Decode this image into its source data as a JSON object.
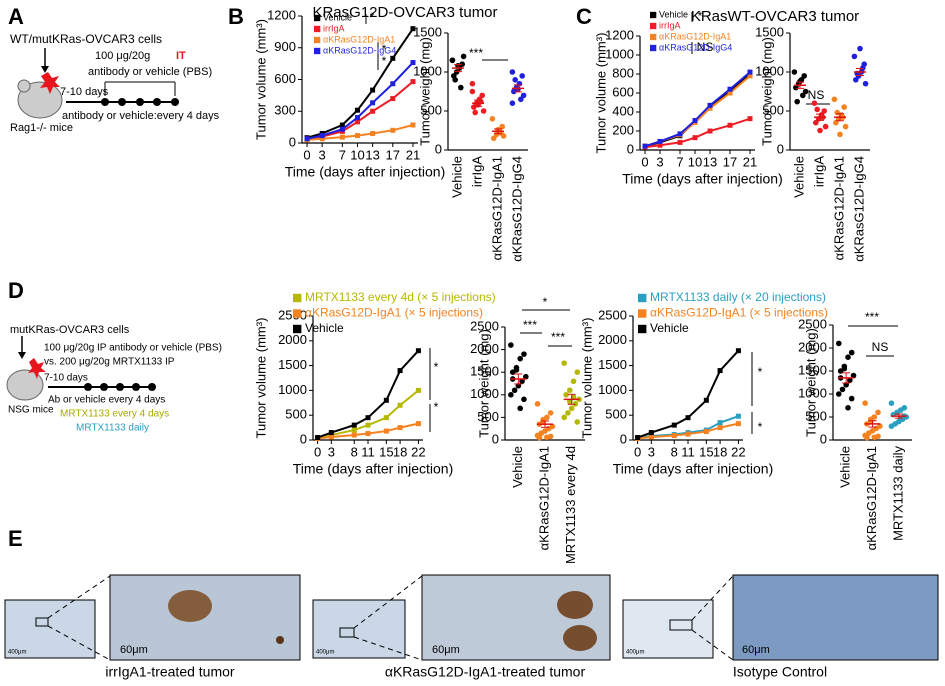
{
  "panel_labels": [
    "A",
    "B",
    "C",
    "D",
    "E"
  ],
  "schematic_A": {
    "cells": "WT/mutKRas-OVCAR3 cells",
    "dose": "100 μg/20g",
    "route": "IT",
    "treatment": "antibody or vehicle (PBS)",
    "delay": "7-10 days",
    "mice": "Rag1-/- mice",
    "schedule": "antibody or vehicle:every 4 days"
  },
  "schematic_D": {
    "cells": "mutKRas-OVCAR3 cells",
    "dose": "100 μg/20g IP antibody or vehicle (PBS)",
    "dose2": "vs. 200 μg/20g MRTX1133 IP",
    "delay": "7-10 days",
    "mice": "NSG mice",
    "schedule": "Ab or vehicle every 4 days",
    "schedule2": "MRTX1133 every 4 days",
    "schedule3": "MRTX1133 daily"
  },
  "images": [
    {
      "caption": "irrIgA1-treated tumor",
      "scale_small": "400μm",
      "scale_large": "60μm"
    },
    {
      "caption": "αKRasG12D-IgA1-treated tumor",
      "scale_small": "400μm",
      "scale_large": "60μm"
    },
    {
      "caption": "Isotype Control",
      "scale_small": "400μm",
      "scale_large": "60μm"
    }
  ],
  "chart_data": [
    {
      "type": "line",
      "title": "KRasG12D-OVCAR3 tumor",
      "y_label": "Tumor volume (mm³)",
      "x_label": "Time (days after injection)",
      "x": [
        0,
        3,
        7,
        10,
        13,
        17,
        21
      ],
      "xlim": [
        -1,
        22
      ],
      "xticks": [
        0,
        3,
        7,
        10,
        13,
        17,
        21
      ],
      "ylim": [
        0,
        1200
      ],
      "yticks": [
        0,
        300,
        600,
        900,
        1200
      ],
      "series": [
        {
          "name": "Vehicle",
          "color": "#000000",
          "values": [
            50,
            90,
            170,
            310,
            500,
            800,
            1080
          ]
        },
        {
          "name": "irrIgA",
          "color": "#ee1c25",
          "values": [
            40,
            60,
            110,
            200,
            300,
            420,
            580
          ]
        },
        {
          "name": "αKRasG12D-IgA1",
          "color": "#f58220",
          "values": [
            30,
            40,
            55,
            70,
            90,
            120,
            170
          ]
        },
        {
          "name": "αKRasG12D-IgG4",
          "color": "#1f1fe0",
          "values": [
            40,
            70,
            130,
            240,
            380,
            560,
            760
          ]
        }
      ],
      "annotations": [
        "*",
        "*",
        "*"
      ]
    },
    {
      "type": "dot",
      "y_label": "Tumor weight (mg)",
      "categories": [
        "Vehicle",
        "irrIgA",
        "αKRasG12D-IgA1",
        "αKRasG12D-IgG4"
      ],
      "colors": [
        "#000000",
        "#ee1c25",
        "#f58220",
        "#1f1fe0"
      ],
      "ylim": [
        0,
        1500
      ],
      "yticks": [
        0,
        500,
        1000,
        1500
      ],
      "points": [
        [
          1150,
          1100,
          1050,
          1000,
          950,
          1200,
          800,
          1080,
          900,
          1150
        ],
        [
          850,
          700,
          650,
          600,
          550,
          500,
          620,
          580,
          480,
          750
        ],
        [
          400,
          300,
          250,
          200,
          150,
          180,
          220,
          260
        ],
        [
          1000,
          950,
          850,
          800,
          750,
          700,
          650,
          780,
          900,
          600
        ]
      ],
      "values": [
        1050,
        600,
        240,
        790
      ],
      "errors": [
        45,
        40,
        30,
        45
      ],
      "annotations": [
        "***"
      ]
    },
    {
      "type": "line",
      "title": "KRasWT-OVCAR3 tumor",
      "y_label": "Tumor volume (mm³)",
      "x_label": "Time (days after injection)",
      "x": [
        0,
        3,
        7,
        10,
        13,
        17,
        21
      ],
      "xlim": [
        -1,
        22
      ],
      "xticks": [
        0,
        3,
        7,
        10,
        13,
        17,
        21
      ],
      "ylim": [
        0,
        1200
      ],
      "yticks": [
        0,
        200,
        400,
        600,
        800,
        1000,
        1200
      ],
      "series": [
        {
          "name": "Vehicle",
          "color": "#000000",
          "values": [
            40,
            80,
            150,
            300,
            450,
            620,
            800
          ]
        },
        {
          "name": "irrIgA",
          "color": "#ee1c25",
          "values": [
            30,
            50,
            80,
            130,
            200,
            260,
            330
          ]
        },
        {
          "name": "αKRasG12D-IgA1",
          "color": "#f58220",
          "values": [
            40,
            90,
            160,
            290,
            440,
            600,
            780
          ]
        },
        {
          "name": "αKRasG12D-IgG4",
          "color": "#1f1fe0",
          "values": [
            40,
            90,
            170,
            310,
            470,
            640,
            820
          ]
        }
      ],
      "annotations": [
        "*",
        "NS"
      ]
    },
    {
      "type": "dot",
      "y_label": "Tumor weight (mg)",
      "categories": [
        "Vehicle",
        "irrIgA",
        "αKRasG12D-IgA1",
        "αKRasG12D-IgG4"
      ],
      "colors": [
        "#000000",
        "#ee1c25",
        "#f58220",
        "#1f1fe0"
      ],
      "ylim": [
        0,
        1500
      ],
      "yticks": [
        0,
        500,
        1000,
        1500
      ],
      "points": [
        [
          1000,
          950,
          900,
          850,
          800,
          750,
          700,
          880,
          620
        ],
        [
          600,
          500,
          450,
          400,
          350,
          300,
          420,
          250,
          520
        ],
        [
          650,
          550,
          450,
          400,
          350,
          300,
          420,
          200,
          480
        ],
        [
          1200,
          1100,
          1000,
          950,
          900,
          850,
          1050,
          1300,
          980
        ]
      ],
      "values": [
        830,
        420,
        420,
        1000
      ],
      "errors": [
        40,
        40,
        45,
        45
      ],
      "annotations": [
        "NS"
      ]
    },
    {
      "type": "line",
      "y_label": "Tumor volume (mm³)",
      "x_label": "Time (days after injection)",
      "x": [
        0,
        3,
        8,
        11,
        15,
        18,
        22
      ],
      "xlim": [
        -1,
        23
      ],
      "xticks": [
        0,
        3,
        8,
        11,
        15,
        18,
        22
      ],
      "ylim": [
        0,
        2500
      ],
      "yticks": [
        0,
        500,
        1000,
        1500,
        2000,
        2500
      ],
      "series": [
        {
          "name": "MRTX1133 every 4d (× 5 injections)",
          "color": "#b5b800",
          "values": [
            50,
            100,
            200,
            300,
            450,
            700,
            1000
          ]
        },
        {
          "name": "αKRasG12D-IgA1 (× 5 injections)",
          "color": "#f58220",
          "values": [
            30,
            60,
            100,
            130,
            180,
            250,
            330
          ]
        },
        {
          "name": "Vehicle",
          "color": "#000000",
          "values": [
            50,
            150,
            300,
            450,
            800,
            1400,
            1800
          ]
        }
      ],
      "annotations": [
        "*",
        "*"
      ]
    },
    {
      "type": "dot",
      "y_label": "Tumor weight (mg)",
      "categories": [
        "Vehicle",
        "αKRasG12D-IgA1",
        "MRTX1133 every 4d"
      ],
      "colors": [
        "#000000",
        "#f58220",
        "#b5b800"
      ],
      "ylim": [
        0,
        2500
      ],
      "yticks": [
        0,
        500,
        1000,
        1500,
        2000,
        2500
      ],
      "points": [
        [
          2100,
          1900,
          1800,
          1600,
          1500,
          1400,
          1300,
          1200,
          1100,
          1000,
          900,
          700,
          1550,
          1350
        ],
        [
          800,
          600,
          500,
          400,
          350,
          300,
          250,
          200,
          150,
          100,
          80,
          60,
          450,
          50
        ],
        [
          1700,
          1500,
          1300,
          1100,
          1000,
          900,
          800,
          700,
          600,
          500,
          400,
          950,
          850
        ]
      ],
      "values": [
        1350,
        350,
        900
      ],
      "errors": [
        110,
        70,
        110
      ],
      "annotations": [
        "*",
        "***",
        "***"
      ]
    },
    {
      "type": "line",
      "y_label": "Tumor volume (mm³)",
      "x_label": "Time (days after injection)",
      "x": [
        0,
        3,
        8,
        11,
        15,
        18,
        22
      ],
      "xlim": [
        -1,
        23
      ],
      "xticks": [
        0,
        3,
        8,
        11,
        15,
        18,
        22
      ],
      "ylim": [
        0,
        2500
      ],
      "yticks": [
        0,
        500,
        1000,
        1500,
        2000,
        2500
      ],
      "series": [
        {
          "name": "MRTX1133 daily (× 20 injections)",
          "color": "#2a9fbf",
          "values": [
            50,
            80,
            110,
            150,
            200,
            350,
            480
          ]
        },
        {
          "name": "αKRasG12D-IgA1 (× 5 injections)",
          "color": "#f58220",
          "values": [
            30,
            60,
            90,
            120,
            170,
            250,
            330
          ]
        },
        {
          "name": "Vehicle",
          "color": "#000000",
          "values": [
            50,
            150,
            300,
            450,
            800,
            1400,
            1800
          ]
        }
      ],
      "annotations": [
        "*",
        "*"
      ]
    },
    {
      "type": "dot",
      "y_label": "Tumor weight (mg)",
      "categories": [
        "Vehicle",
        "αKRasG12D-IgA1",
        "MRTX1133 daily"
      ],
      "colors": [
        "#000000",
        "#f58220",
        "#2a9fbf"
      ],
      "ylim": [
        0,
        2500
      ],
      "yticks": [
        0,
        500,
        1000,
        1500,
        2000,
        2500
      ],
      "points": [
        [
          2100,
          1900,
          1800,
          1600,
          1500,
          1400,
          1300,
          1200,
          1100,
          1000,
          900,
          700,
          1550,
          1350
        ],
        [
          800,
          600,
          500,
          400,
          350,
          300,
          250,
          200,
          150,
          100,
          80,
          60,
          450,
          50
        ],
        [
          800,
          700,
          650,
          600,
          550,
          500,
          450,
          400,
          350,
          300,
          520,
          480
        ]
      ],
      "values": [
        1350,
        350,
        520
      ],
      "errors": [
        110,
        70,
        45
      ],
      "annotations": [
        "***",
        "NS"
      ]
    }
  ]
}
